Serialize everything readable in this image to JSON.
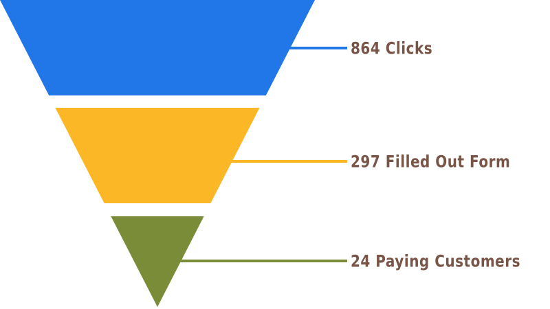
{
  "chart_data": {
    "type": "funnel",
    "title": "",
    "stages": [
      {
        "label": "Clicks",
        "value": 864,
        "label_text": "864 Clicks",
        "color": "#2176E8"
      },
      {
        "label": "Filled Out Form",
        "value": 297,
        "label_text": "297 Filled Out Form",
        "color": "#FBB725"
      },
      {
        "label": "Paying Customers",
        "value": 24,
        "label_text": "24 Paying Customers",
        "color": "#7B8C38"
      }
    ],
    "label_color": "#795548",
    "background": "#FFFFFF",
    "layout": {
      "orientation": "inverted-pyramid",
      "equal_slice_heights": true,
      "leader_lines": true,
      "labels_position": "right",
      "grid": false,
      "legend": false
    }
  }
}
